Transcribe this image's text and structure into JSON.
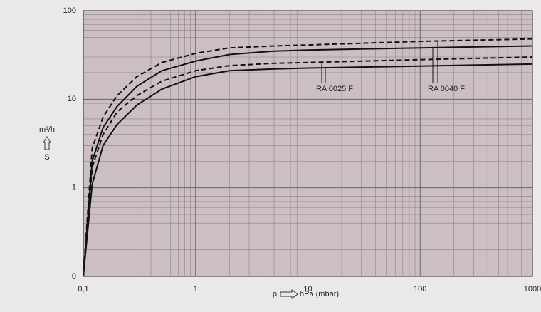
{
  "chart_data": {
    "type": "line",
    "x": [
      0.1,
      0.12,
      0.15,
      0.2,
      0.3,
      0.5,
      1,
      2,
      5,
      10,
      100,
      1000
    ],
    "series": [
      {
        "color": "#111111",
        "dashed": false,
        "values": [
          0.1,
          1.1,
          3.0,
          5.2,
          8.6,
          13,
          18,
          21,
          22,
          22.5,
          23.7,
          25
        ]
      },
      {
        "color": "#111111",
        "dashed": true,
        "values": [
          0.1,
          1.7,
          4.0,
          7.2,
          11,
          16,
          21,
          24,
          25.5,
          26,
          28,
          30
        ]
      },
      {
        "color": "#111111",
        "dashed": false,
        "values": [
          0.1,
          2.0,
          4.8,
          8.3,
          14,
          21,
          27,
          32,
          35,
          36,
          38,
          40
        ]
      },
      {
        "color": "#111111",
        "dashed": true,
        "values": [
          0.1,
          2.8,
          6.3,
          11,
          18,
          26,
          33,
          38,
          40,
          41,
          45,
          48
        ]
      }
    ],
    "annotations": [
      "RA 0025 F",
      "RA 0040 F"
    ],
    "xlabel": "p",
    "xlabel_unit": "hPa (mbar)",
    "ylabel": "S",
    "ylabel_unit": "m³/h",
    "xlog": true,
    "ylog": true,
    "grid": true,
    "minor_grid": true,
    "xlim": [
      0.1,
      1000
    ],
    "ylim": [
      0.1,
      100
    ],
    "xticks": [
      {
        "value": 0.1,
        "label": "0,1"
      },
      1,
      10,
      100,
      1000
    ],
    "yticks": [
      {
        "value": 0.1,
        "label": "0"
      },
      1,
      10,
      100
    ]
  }
}
